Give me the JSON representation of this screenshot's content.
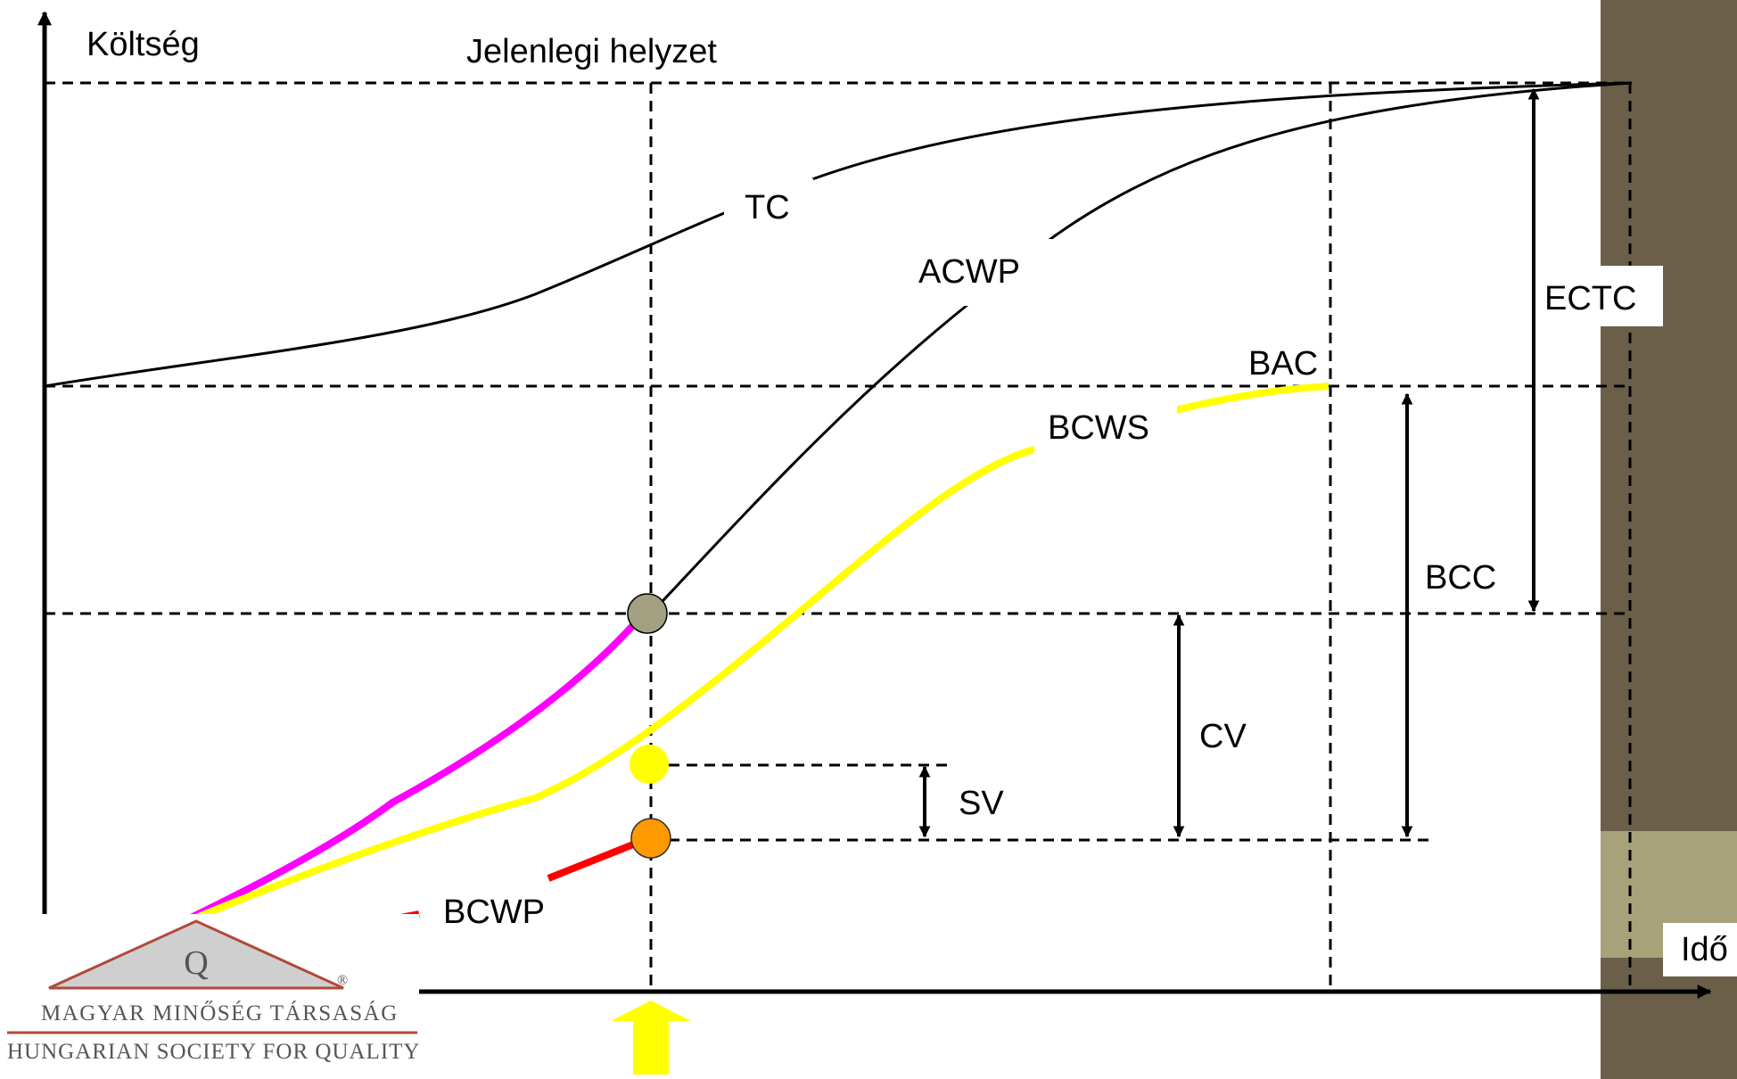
{
  "diagram": {
    "y_axis_label": "Költség",
    "x_axis_label": "Idő",
    "status_line_label": "Jelenlegi helyzet",
    "curves": {
      "tc": "TC",
      "acwp": "ACWP",
      "bcws": "BCWS",
      "bcwp": "BCWP"
    },
    "markers": {
      "bac": "BAC",
      "ectc": "ECTC",
      "bcc": "BCC",
      "cv": "CV",
      "sv": "SV"
    },
    "colors": {
      "acwp_actual": "#ff00ff",
      "bcws": "#ffff00",
      "bcwp": "#ff0000",
      "acwp_point": "#a3a082",
      "bcws_point": "#ffff00",
      "bcwp_point": "#ff9900",
      "side_panel": "#6b5f4a",
      "side_panel_band": "#a8a27a",
      "current_arrow": "#ffff00"
    }
  },
  "logo": {
    "line1": "MAGYAR MINŐSÉG TÁRSASÁG",
    "line2": "HUNGARIAN SOCIETY FOR QUALITY",
    "mark_letter": "Q",
    "registered": "®"
  }
}
